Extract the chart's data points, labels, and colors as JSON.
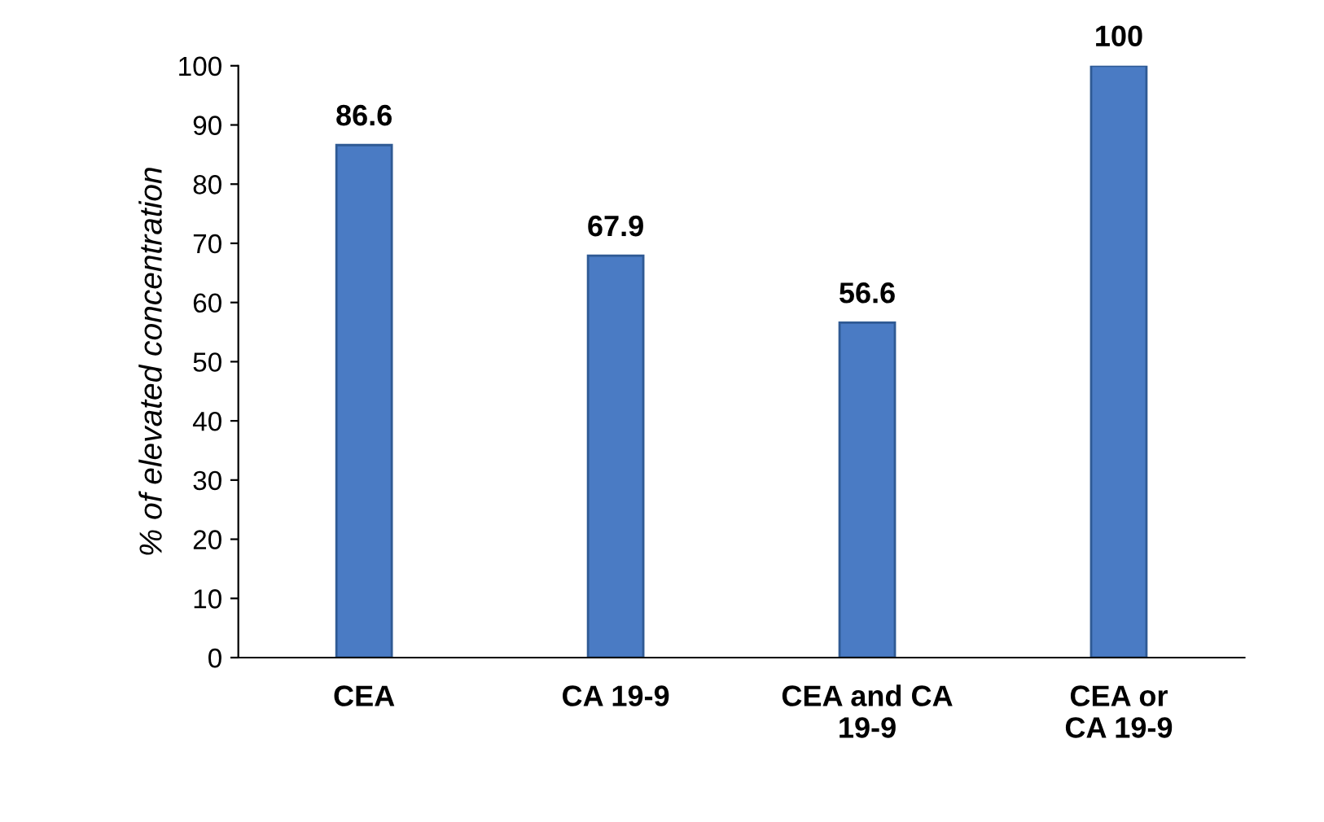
{
  "chart_data": {
    "type": "bar",
    "ylabel": "% of elevated concentration",
    "categories": [
      "CEA",
      "CA 19-9",
      "CEA and CA\n19-9",
      "CEA or\nCA 19-9"
    ],
    "values": [
      86.6,
      67.9,
      56.6,
      100
    ],
    "color": "#4a7bc4",
    "ylim": [
      0,
      100
    ],
    "yticks": [
      0,
      10,
      20,
      30,
      40,
      50,
      60,
      70,
      80,
      90,
      100
    ],
    "data_labels": true,
    "grid": false,
    "legend": false
  }
}
